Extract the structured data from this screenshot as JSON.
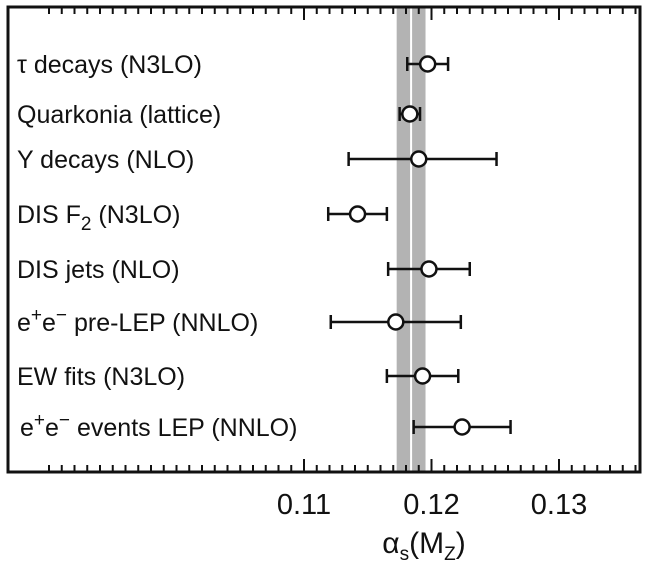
{
  "chart_data": {
    "type": "scatter",
    "orientation": "horizontal-error-bars",
    "xlabel": {
      "main": "α",
      "sub": "s",
      "mid": "(M",
      "sub2": "Z",
      "end": ")"
    },
    "xlim": [
      0.1,
      0.135
    ],
    "xticks": [
      {
        "value": 0.11,
        "label": "0.11"
      },
      {
        "value": 0.12,
        "label": "0.12"
      },
      {
        "value": 0.13,
        "label": "0.13"
      }
    ],
    "minor_tick_step": 0.001,
    "world_average_band": {
      "center": 0.1184,
      "half_width": 0.0007,
      "color": "#b3b3b3"
    },
    "grid": false,
    "legend": "none",
    "measurements": [
      {
        "label": "τ  decays (N3LO)",
        "value": 0.1197,
        "err_low": 0.0016,
        "err_high": 0.0016
      },
      {
        "label": "Quarkonia (lattice)",
        "value": 0.1183,
        "err_low": 0.0008,
        "err_high": 0.0008
      },
      {
        "label": "Υ  decays (NLO)",
        "value": 0.119,
        "err_low": 0.0055,
        "err_high": 0.0061
      },
      {
        "label": "DIS F",
        "sub": "2",
        "label_tail": " (N3LO)",
        "value": 0.1142,
        "err_low": 0.0023,
        "err_high": 0.0023
      },
      {
        "label": "DIS jets (NLO)",
        "value": 0.1198,
        "err_low": 0.0032,
        "err_high": 0.0032
      },
      {
        "label": "e",
        "sup": "+",
        "label_mid": "e",
        "sup2": "−",
        "label_tail": " pre-LEP (NNLO)",
        "value": 0.1172,
        "err_low": 0.0051,
        "err_high": 0.0051
      },
      {
        "label": "EW fits (N3LO)",
        "value": 0.1193,
        "err_low": 0.0028,
        "err_high": 0.0028
      },
      {
        "label": "e",
        "sup": "+",
        "label_mid": "e",
        "sup2": "−",
        "label_tail": " events LEP (NNLO)",
        "value": 0.1224,
        "err_low": 0.0038,
        "err_high": 0.0038
      }
    ],
    "colors": {
      "axis": "#111111",
      "marker_fill": "#ffffff",
      "marker_stroke": "#111111"
    }
  }
}
